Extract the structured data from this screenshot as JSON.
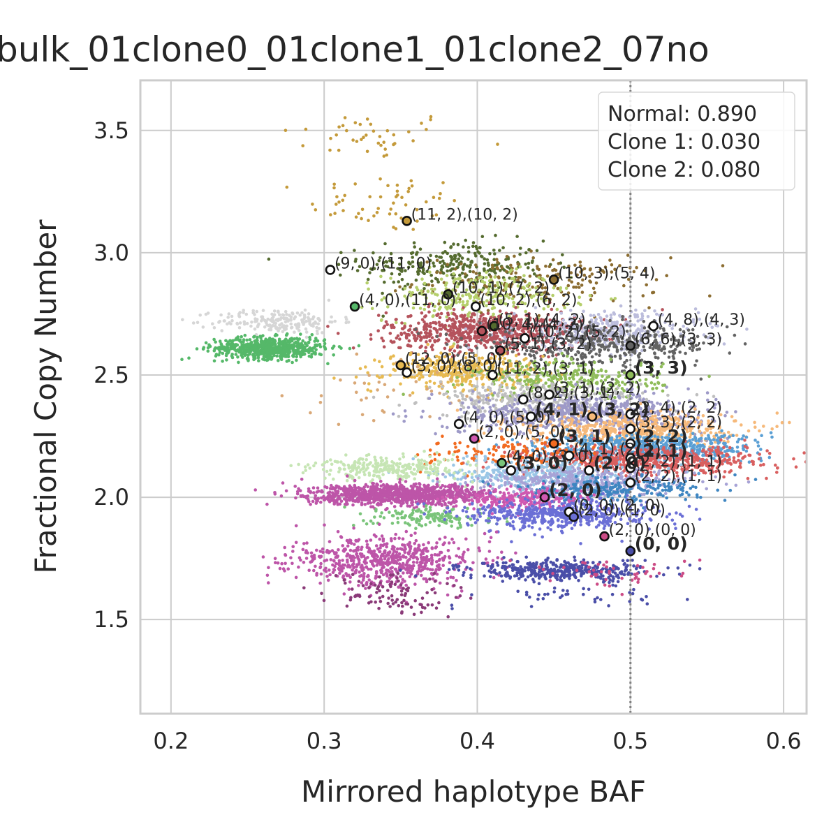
{
  "chart_data": {
    "type": "scatter",
    "title": "bulk_01clone0_01clone1_01clone2_07no",
    "xlabel": "Mirrored haplotype BAF",
    "ylabel": "Fractional Copy Number",
    "xlim": [
      0.18,
      0.615
    ],
    "ylim": [
      1.115,
      3.705
    ],
    "xticks": [
      0.2,
      0.3,
      0.4,
      0.5,
      0.6
    ],
    "xtick_labels": [
      "0.2",
      "0.3",
      "0.4",
      "0.5",
      "0.6"
    ],
    "yticks": [
      1.5,
      2.0,
      2.5,
      3.0,
      3.5
    ],
    "ytick_labels": [
      "1.5",
      "2.0",
      "2.5",
      "3.0",
      "3.5"
    ],
    "grid": true,
    "vline": {
      "x": 0.5,
      "style": "dotted",
      "color": "#808080"
    },
    "legend": {
      "placement": "top-right",
      "entries": [
        "Normal: 0.890",
        "Clone 1: 0.030",
        "Clone 2: 0.080"
      ]
    },
    "clusters": [
      {
        "color": "#c49a3a",
        "cx": 0.33,
        "cy": 3.48,
        "sx": 0.03,
        "sy": 0.05,
        "n": 40
      },
      {
        "color": "#c49a3a",
        "cx": 0.34,
        "cy": 3.2,
        "sx": 0.025,
        "sy": 0.06,
        "n": 55
      },
      {
        "color": "#556b2f",
        "cx": 0.385,
        "cy": 2.95,
        "sx": 0.03,
        "sy": 0.05,
        "n": 260
      },
      {
        "color": "#8c6d31",
        "cx": 0.44,
        "cy": 2.88,
        "sx": 0.04,
        "sy": 0.05,
        "n": 200
      },
      {
        "color": "#b5cf6b",
        "cx": 0.4,
        "cy": 2.82,
        "sx": 0.03,
        "sy": 0.05,
        "n": 250
      },
      {
        "color": "#d6d6d6",
        "cx": 0.27,
        "cy": 2.72,
        "sx": 0.02,
        "sy": 0.025,
        "n": 200
      },
      {
        "color": "#55b869",
        "cx": 0.265,
        "cy": 2.61,
        "sx": 0.018,
        "sy": 0.022,
        "n": 650
      },
      {
        "color": "#b5535c",
        "cx": 0.405,
        "cy": 2.68,
        "sx": 0.032,
        "sy": 0.04,
        "n": 750
      },
      {
        "color": "#bcbddc",
        "cx": 0.485,
        "cy": 2.68,
        "sx": 0.03,
        "sy": 0.04,
        "n": 350
      },
      {
        "color": "#636363",
        "cx": 0.48,
        "cy": 2.62,
        "sx": 0.04,
        "sy": 0.04,
        "n": 420
      },
      {
        "color": "#e7ba52",
        "cx": 0.39,
        "cy": 2.52,
        "sx": 0.025,
        "sy": 0.035,
        "n": 380
      },
      {
        "color": "#8fbc5a",
        "cx": 0.46,
        "cy": 2.48,
        "sx": 0.03,
        "sy": 0.04,
        "n": 300
      },
      {
        "color": "#d9a877",
        "cx": 0.34,
        "cy": 2.42,
        "sx": 0.03,
        "sy": 0.06,
        "n": 40
      },
      {
        "color": "#bfbfbf",
        "cx": 0.44,
        "cy": 2.4,
        "sx": 0.035,
        "sy": 0.035,
        "n": 320
      },
      {
        "color": "#9e9ac8",
        "cx": 0.47,
        "cy": 2.34,
        "sx": 0.04,
        "sy": 0.04,
        "n": 650
      },
      {
        "color": "#f6b97a",
        "cx": 0.5,
        "cy": 2.28,
        "sx": 0.035,
        "sy": 0.035,
        "n": 520
      },
      {
        "color": "#5a9fd4",
        "cx": 0.51,
        "cy": 2.2,
        "sx": 0.035,
        "sy": 0.03,
        "n": 650
      },
      {
        "color": "#d95f5f",
        "cx": 0.51,
        "cy": 2.15,
        "sx": 0.04,
        "sy": 0.03,
        "n": 650
      },
      {
        "color": "#f26b20",
        "cx": 0.42,
        "cy": 2.18,
        "sx": 0.03,
        "sy": 0.03,
        "n": 130
      },
      {
        "color": "#9ac6e6",
        "cx": 0.44,
        "cy": 2.1,
        "sx": 0.03,
        "sy": 0.03,
        "n": 350
      },
      {
        "color": "#c6e5b4",
        "cx": 0.345,
        "cy": 2.12,
        "sx": 0.025,
        "sy": 0.025,
        "n": 280
      },
      {
        "color": "#a7a3d6",
        "cx": 0.47,
        "cy": 2.06,
        "sx": 0.035,
        "sy": 0.03,
        "n": 420
      },
      {
        "color": "#3f86c1",
        "cx": 0.485,
        "cy": 2.03,
        "sx": 0.03,
        "sy": 0.025,
        "n": 250
      },
      {
        "color": "#bd55a8",
        "cx": 0.35,
        "cy": 2.01,
        "sx": 0.03,
        "sy": 0.02,
        "n": 1000
      },
      {
        "color": "#d058b0",
        "cx": 0.43,
        "cy": 1.99,
        "sx": 0.02,
        "sy": 0.025,
        "n": 220
      },
      {
        "color": "#7ac47a",
        "cx": 0.37,
        "cy": 1.92,
        "sx": 0.02,
        "sy": 0.02,
        "n": 150
      },
      {
        "color": "#6b6fd6",
        "cx": 0.455,
        "cy": 1.93,
        "sx": 0.03,
        "sy": 0.03,
        "n": 500
      },
      {
        "color": "#bd55a8",
        "cx": 0.34,
        "cy": 1.74,
        "sx": 0.03,
        "sy": 0.05,
        "n": 650
      },
      {
        "color": "#8a3a78",
        "cx": 0.345,
        "cy": 1.6,
        "sx": 0.02,
        "sy": 0.04,
        "n": 100
      },
      {
        "color": "#4a4ea8",
        "cx": 0.455,
        "cy": 1.7,
        "sx": 0.03,
        "sy": 0.02,
        "n": 400
      },
      {
        "color": "#4a4ea8",
        "cx": 0.46,
        "cy": 1.6,
        "sx": 0.03,
        "sy": 0.02,
        "n": 40
      },
      {
        "color": "#cc4c86",
        "cx": 0.48,
        "cy": 1.69,
        "sx": 0.03,
        "sy": 0.03,
        "n": 50
      }
    ],
    "points": [
      {
        "x": 0.354,
        "y": 3.13,
        "fill": "#c49a3a",
        "label": "(11, 2),(10, 2)",
        "bold": false
      },
      {
        "x": 0.304,
        "y": 2.93,
        "fill": "#ffffff",
        "label": "(9, 0),(11, 0)",
        "bold": false
      },
      {
        "x": 0.45,
        "y": 2.89,
        "fill": "#8c6d31",
        "label": "(10, 3),(5, 4)",
        "bold": false
      },
      {
        "x": 0.381,
        "y": 2.83,
        "fill": "#556b2f",
        "label": "(10, 1),(7, 2)",
        "bold": false
      },
      {
        "x": 0.32,
        "y": 2.78,
        "fill": "#55b869",
        "label": "(4, 0),(11, 0)",
        "bold": false
      },
      {
        "x": 0.399,
        "y": 2.78,
        "fill": "#ffffff",
        "label": "(10, 2),(6, 2)",
        "bold": false
      },
      {
        "x": 0.411,
        "y": 2.7,
        "fill": "#556b2f",
        "label": "(5, 1),(4, 2)",
        "bold": false
      },
      {
        "x": 0.431,
        "y": 2.65,
        "fill": "#ffffff",
        "label": "(10, 2),(5, 2)",
        "bold": false
      },
      {
        "x": 0.403,
        "y": 2.68,
        "fill": "#b5535c",
        "label": "(10, 4),(4, 2)",
        "bold": false
      },
      {
        "x": 0.515,
        "y": 2.7,
        "fill": "#ffffff",
        "label": "(4, 8),(4, 3)",
        "bold": false
      },
      {
        "x": 0.5,
        "y": 2.62,
        "fill": "#636363",
        "label": "(6, 6),(3, 3)",
        "bold": false
      },
      {
        "x": 0.415,
        "y": 2.6,
        "fill": "#b5535c",
        "label": "(5, 1),(3, 2)",
        "bold": false
      },
      {
        "x": 0.35,
        "y": 2.54,
        "fill": "#e7ba52",
        "label": "(12, 0),(5, 0)",
        "bold": false
      },
      {
        "x": 0.354,
        "y": 2.51,
        "fill": "#ffffff",
        "label": "(3, 0),(8, 0)",
        "bold": false
      },
      {
        "x": 0.41,
        "y": 2.5,
        "fill": "#ffffff",
        "label": "(11, 2),(3, 1)",
        "bold": false
      },
      {
        "x": 0.5,
        "y": 2.5,
        "fill": "#8fbc5a",
        "label": "(3, 3)",
        "bold": true
      },
      {
        "x": 0.447,
        "y": 2.42,
        "fill": "#ffffff",
        "label": "(3, 1),(2, 2)",
        "bold": false
      },
      {
        "x": 0.43,
        "y": 2.4,
        "fill": "#ffffff",
        "label": "(8, 2),(3, 1)",
        "bold": false
      },
      {
        "x": 0.435,
        "y": 2.33,
        "fill": "#ffffff",
        "label": "(4, 1)",
        "bold": true
      },
      {
        "x": 0.475,
        "y": 2.33,
        "fill": "#f6b97a",
        "label": "(3, 2)",
        "bold": true
      },
      {
        "x": 0.5,
        "y": 2.34,
        "fill": "#ffffff",
        "label": "(2, 4),(2, 2)",
        "bold": false
      },
      {
        "x": 0.388,
        "y": 2.3,
        "fill": "#ffffff",
        "label": "(4, 0),(5, 0)",
        "bold": false
      },
      {
        "x": 0.5,
        "y": 2.28,
        "fill": "#ffffff",
        "label": "(3, 3),(2, 2)",
        "bold": false
      },
      {
        "x": 0.398,
        "y": 2.24,
        "fill": "#d058b0",
        "label": "(2, 0),(5, 0)",
        "bold": false
      },
      {
        "x": 0.45,
        "y": 2.22,
        "fill": "#f26b20",
        "label": "(3, 1)",
        "bold": true
      },
      {
        "x": 0.5,
        "y": 2.22,
        "fill": "#ffffff",
        "label": "(2, 2)",
        "bold": true
      },
      {
        "x": 0.46,
        "y": 2.17,
        "fill": "#ffffff",
        "label": "(4, 1),(2, 1)",
        "bold": false
      },
      {
        "x": 0.5,
        "y": 2.16,
        "fill": "#ffffff",
        "label": "(2, 1)",
        "bold": true
      },
      {
        "x": 0.416,
        "y": 2.14,
        "fill": "#7ac47a",
        "label": "(4, 0),(3, 0)",
        "bold": false
      },
      {
        "x": 0.422,
        "y": 2.11,
        "fill": "#ffffff",
        "label": "(3, 0)",
        "bold": true
      },
      {
        "x": 0.473,
        "y": 2.11,
        "fill": "#ffffff",
        "label": "(2, 0)",
        "bold": true
      },
      {
        "x": 0.5,
        "y": 2.12,
        "fill": "#ffffff",
        "label": "(2, 2),(1, 1)",
        "bold": false
      },
      {
        "x": 0.5,
        "y": 2.06,
        "fill": "#ffffff",
        "label": "(2, 2),(1, 1)",
        "bold": false
      },
      {
        "x": 0.444,
        "y": 2.0,
        "fill": "#d058b0",
        "label": "(2, 0)",
        "bold": true
      },
      {
        "x": 0.46,
        "y": 1.94,
        "fill": "#ffffff",
        "label": "(0, 0),(2, 0)",
        "bold": false
      },
      {
        "x": 0.463,
        "y": 1.92,
        "fill": "#6b6fd6",
        "label": "(2, 0),(1, 0)",
        "bold": false
      },
      {
        "x": 0.483,
        "y": 1.84,
        "fill": "#cc4c86",
        "label": "(2, 0),(0, 0)",
        "bold": false
      },
      {
        "x": 0.5,
        "y": 1.78,
        "fill": "#4a4ea8",
        "label": "(0, 0)",
        "bold": true
      }
    ]
  }
}
